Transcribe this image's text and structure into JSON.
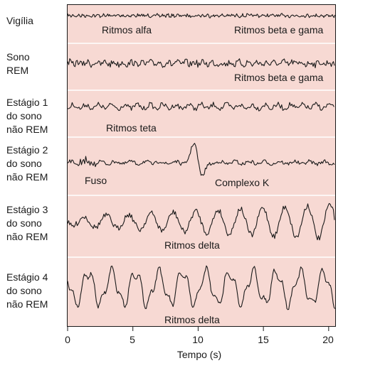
{
  "stages": [
    {
      "lines": [
        "Vigília"
      ]
    },
    {
      "lines": [
        "Sono",
        "REM"
      ]
    },
    {
      "lines": [
        "Estágio 1",
        "do sono",
        "não REM"
      ]
    },
    {
      "lines": [
        "Estágio 2",
        "do sono",
        "não REM"
      ]
    },
    {
      "lines": [
        "Estágio 3",
        "do sono",
        "não REM"
      ]
    },
    {
      "lines": [
        "Estágio 4",
        "do sono",
        "não REM"
      ]
    }
  ],
  "annotations": {
    "alpha": "Ritmos alfa",
    "beta_gamma_1": "Ritmos beta e gama",
    "beta_gamma_2": "Ritmos beta e gama",
    "theta": "Ritmos teta",
    "spindle": "Fuso",
    "k_complex": "Complexo K",
    "delta_1": "Ritmos delta",
    "delta_2": "Ritmos delta"
  },
  "x_axis": {
    "title": "Tempo (s)",
    "ticks": [
      "0",
      "5",
      "10",
      "15",
      "20"
    ]
  },
  "colors": {
    "panel_background": "#f7d9d3",
    "trace": "#1a1a1a",
    "separator": "#ffffff"
  }
}
